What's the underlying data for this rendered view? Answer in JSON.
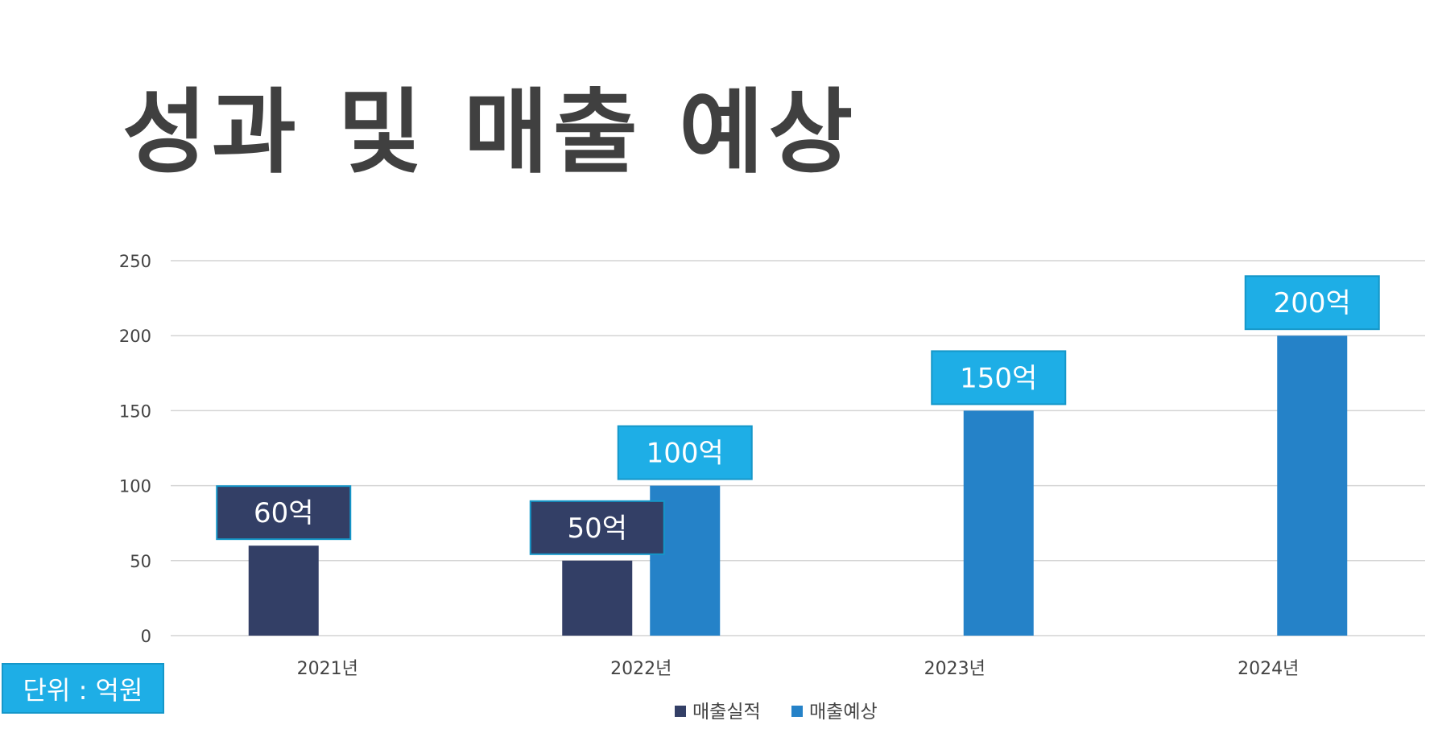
{
  "title": "성과 및 매출 예상",
  "unit_label": "단위 : 억원",
  "colors": {
    "actual": "#333f66",
    "forecast": "#2582c8",
    "actual_label_bg": "#333f66",
    "forecast_label_bg": "#1eaee6",
    "label_border": "#1597c9",
    "grid": "#d4d4d4",
    "axis_text": "#444444",
    "title": "#404040"
  },
  "chart_data": {
    "type": "bar",
    "categories": [
      "2021년",
      "2022년",
      "2023년",
      "2024년"
    ],
    "series": [
      {
        "name": "매출실적",
        "values": [
          60,
          50,
          null,
          null
        ],
        "labels": [
          "60억",
          "50억",
          null,
          null
        ]
      },
      {
        "name": "매출예상",
        "values": [
          null,
          100,
          150,
          200
        ],
        "labels": [
          null,
          "100억",
          "150억",
          "200억"
        ]
      }
    ],
    "y_ticks": [
      "0",
      "50",
      "100",
      "150",
      "200",
      "250"
    ],
    "ylim": [
      0,
      250
    ],
    "grid": true,
    "legend": "bottom"
  }
}
